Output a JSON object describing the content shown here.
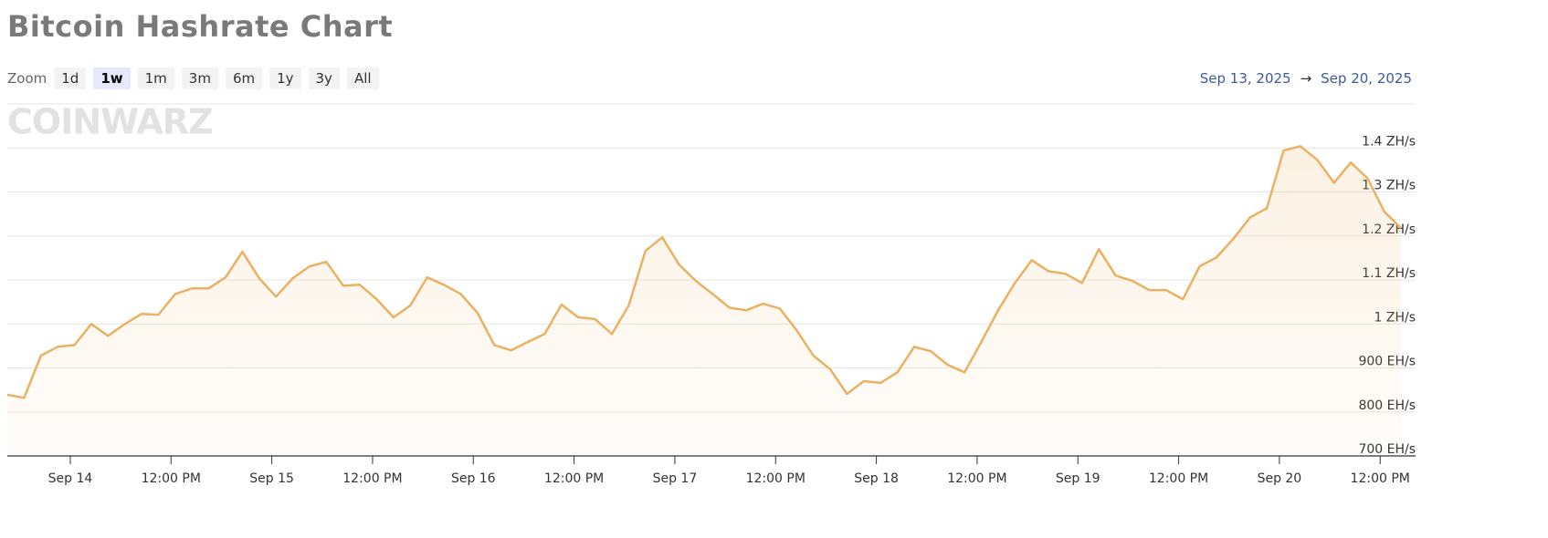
{
  "page": {
    "title": "Bitcoin Hashrate Chart",
    "zoom": {
      "label": "Zoom",
      "options": [
        "1d",
        "1w",
        "1m",
        "3m",
        "6m",
        "1y",
        "3y",
        "All"
      ],
      "selected": "1w"
    },
    "range": {
      "from": "Sep 13, 2025",
      "arrow": "→",
      "to": "Sep 20, 2025"
    },
    "watermark": "COINWARZ"
  },
  "chart_data": {
    "type": "line",
    "color": "#ebb162",
    "grid": true,
    "x": [
      "Sep 13 4:30 PM",
      "Sep 13 6:30 PM",
      "Sep 13 8:30 PM",
      "Sep 13 10:30 PM",
      "Sep 14 12:30 AM",
      "Sep 14 2:30 AM",
      "Sep 14 4:30 AM",
      "Sep 14 6:30 AM",
      "Sep 14 8:30 AM",
      "Sep 14 10:30 AM",
      "Sep 14 12:30 PM",
      "Sep 14 2:30 PM",
      "Sep 14 4:30 PM",
      "Sep 14 6:30 PM",
      "Sep 14 8:30 PM",
      "Sep 14 10:30 PM",
      "Sep 15 12:30 AM",
      "Sep 15 2:30 AM",
      "Sep 15 4:30 AM",
      "Sep 15 6:30 AM",
      "Sep 15 8:30 AM",
      "Sep 15 10:30 AM",
      "Sep 15 12:30 PM",
      "Sep 15 2:30 PM",
      "Sep 15 4:30 PM",
      "Sep 15 6:30 PM",
      "Sep 15 8:30 PM",
      "Sep 15 10:30 PM",
      "Sep 16 12:30 AM",
      "Sep 16 2:30 AM",
      "Sep 16 4:30 AM",
      "Sep 16 6:30 AM",
      "Sep 16 8:30 AM",
      "Sep 16 10:30 AM",
      "Sep 16 12:30 PM",
      "Sep 16 2:30 PM",
      "Sep 16 4:30 PM",
      "Sep 16 6:30 PM",
      "Sep 16 8:30 PM",
      "Sep 16 10:30 PM",
      "Sep 17 12:30 AM",
      "Sep 17 2:30 AM",
      "Sep 17 4:30 AM",
      "Sep 17 6:30 AM",
      "Sep 17 8:30 AM",
      "Sep 17 10:30 AM",
      "Sep 17 12:30 PM",
      "Sep 17 2:30 PM",
      "Sep 17 4:30 PM",
      "Sep 17 6:30 PM",
      "Sep 17 8:30 PM",
      "Sep 17 10:30 PM",
      "Sep 18 12:30 AM",
      "Sep 18 2:30 AM",
      "Sep 18 4:30 AM",
      "Sep 18 6:30 AM",
      "Sep 18 8:30 AM",
      "Sep 18 10:30 AM",
      "Sep 18 12:30 PM",
      "Sep 18 2:30 PM",
      "Sep 18 4:30 PM",
      "Sep 18 6:30 PM",
      "Sep 18 8:30 PM",
      "Sep 18 10:30 PM",
      "Sep 19 12:30 AM",
      "Sep 19 2:30 AM",
      "Sep 19 4:30 AM",
      "Sep 19 6:30 AM",
      "Sep 19 8:30 AM",
      "Sep 19 10:30 AM",
      "Sep 19 12:30 PM",
      "Sep 19 2:30 PM",
      "Sep 19 4:30 PM",
      "Sep 19 6:30 PM",
      "Sep 19 8:30 PM",
      "Sep 19 10:30 PM",
      "Sep 20 12:30 AM",
      "Sep 20 2:30 AM",
      "Sep 20 4:30 AM",
      "Sep 20 6:30 AM",
      "Sep 20 8:30 AM",
      "Sep 20 10:30 AM",
      "Sep 20 12:30 PM",
      "Sep 20 2:30 PM"
    ],
    "values": [
      839,
      832,
      928,
      948,
      952,
      1000,
      973,
      1000,
      1023,
      1021,
      1068,
      1081,
      1081,
      1106,
      1164,
      1104,
      1062,
      1104,
      1131,
      1141,
      1087,
      1089,
      1056,
      1015,
      1042,
      1106,
      1089,
      1068,
      1025,
      952,
      940,
      959,
      977,
      1044,
      1015,
      1011,
      977,
      1042,
      1166,
      1197,
      1135,
      1098,
      1068,
      1037,
      1031,
      1046,
      1035,
      986,
      928,
      897,
      841,
      870,
      866,
      890,
      948,
      938,
      907,
      890,
      959,
      1031,
      1093,
      1145,
      1120,
      1114,
      1093,
      1170,
      1110,
      1098,
      1077,
      1077,
      1056,
      1131,
      1151,
      1193,
      1242,
      1263,
      1394,
      1404,
      1373,
      1321,
      1367,
      1331,
      1255,
      1218
    ],
    "xlim": [
      "Sep 13 4:30 PM",
      "Sep 20 4:00 PM"
    ],
    "xticks": [
      {
        "value": "Sep 14 12:00 AM",
        "label": "Sep 14"
      },
      {
        "value": "Sep 14 12:00 PM",
        "label": "12:00 PM"
      },
      {
        "value": "Sep 15 12:00 AM",
        "label": "Sep 15"
      },
      {
        "value": "Sep 15 12:00 PM",
        "label": "12:00 PM"
      },
      {
        "value": "Sep 16 12:00 AM",
        "label": "Sep 16"
      },
      {
        "value": "Sep 16 12:00 PM",
        "label": "12:00 PM"
      },
      {
        "value": "Sep 17 12:00 AM",
        "label": "Sep 17"
      },
      {
        "value": "Sep 17 12:00 PM",
        "label": "12:00 PM"
      },
      {
        "value": "Sep 18 12:00 AM",
        "label": "Sep 18"
      },
      {
        "value": "Sep 18 12:00 PM",
        "label": "12:00 PM"
      },
      {
        "value": "Sep 19 12:00 AM",
        "label": "Sep 19"
      },
      {
        "value": "Sep 19 12:00 PM",
        "label": "12:00 PM"
      },
      {
        "value": "Sep 20 12:00 AM",
        "label": "Sep 20"
      },
      {
        "value": "Sep 20 12:00 PM",
        "label": "12:00 PM"
      }
    ],
    "ylim": [
      700,
      1500
    ],
    "yticks": [
      {
        "value": 700,
        "label": "700 EH/s"
      },
      {
        "value": 800,
        "label": "800 EH/s"
      },
      {
        "value": 900,
        "label": "900 EH/s"
      },
      {
        "value": 1000,
        "label": "1 ZH/s"
      },
      {
        "value": 1100,
        "label": "1.1 ZH/s"
      },
      {
        "value": 1200,
        "label": "1.2 ZH/s"
      },
      {
        "value": 1300,
        "label": "1.3 ZH/s"
      },
      {
        "value": 1400,
        "label": "1.4 ZH/s"
      }
    ]
  }
}
